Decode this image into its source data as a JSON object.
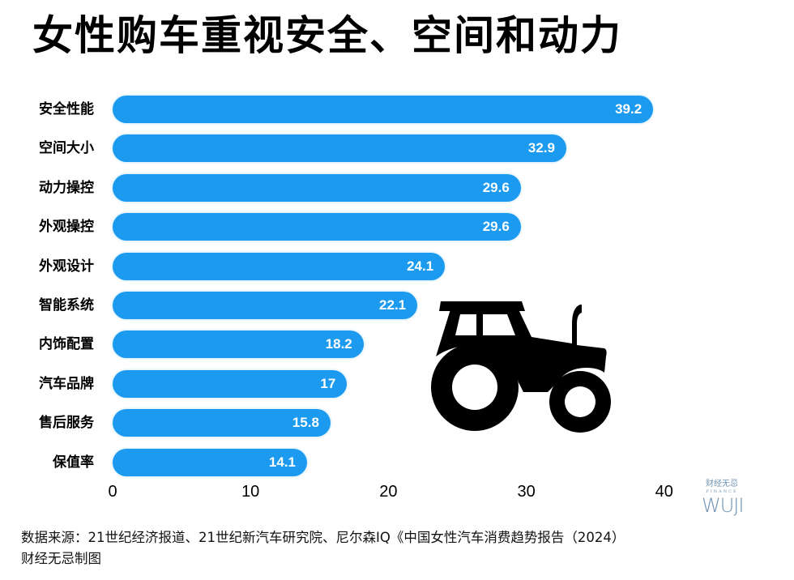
{
  "title": "女性购车重视安全、空间和动力",
  "colors": {
    "bar": "#1b9af0",
    "value_text": "#ffffff",
    "text": "#000000",
    "logo": "#6f93b3"
  },
  "chart_data": {
    "type": "bar",
    "orientation": "horizontal",
    "title": "女性购车重视安全、空间和动力",
    "categories": [
      "安全性能",
      "空间大小",
      "动力操控",
      "外观操控",
      "外观设计",
      "智能系统",
      "内饰配置",
      "汽车品牌",
      "售后服务",
      "保值率"
    ],
    "values": [
      39.2,
      32.9,
      29.6,
      29.6,
      24.1,
      22.1,
      18.2,
      17,
      15.8,
      14.1
    ],
    "value_labels": [
      "39.2",
      "32.9",
      "29.6",
      "29.6",
      "24.1",
      "22.1",
      "18.2",
      "17",
      "15.8",
      "14.1"
    ],
    "xlabel": "",
    "ylabel": "",
    "xlim": [
      0,
      40
    ],
    "x_ticks": [
      "0",
      "10",
      "20",
      "30",
      "40"
    ],
    "grid": false,
    "legend": null
  },
  "illustration": "tractor-icon",
  "logo": {
    "line1": "财经无忌",
    "line2": "FINANCE",
    "line3": "WUJI"
  },
  "source": {
    "line1": "数据来源：21世纪经济报道、21世纪新汽车研究院、尼尔森IQ《中国女性汽车消费趋势报告（2024）",
    "line2": "财经无忌制图"
  }
}
